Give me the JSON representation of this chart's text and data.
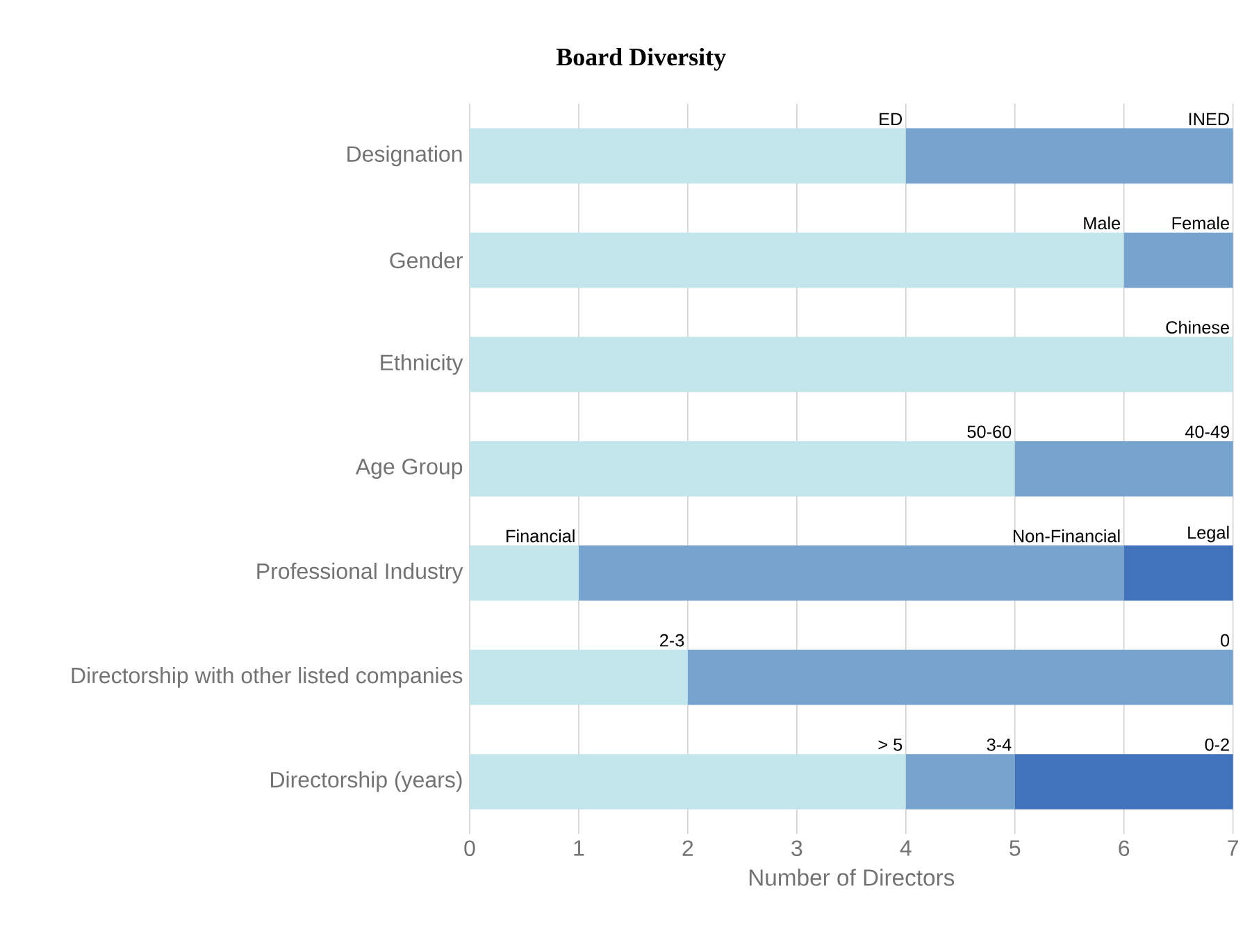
{
  "chart_data": {
    "type": "bar",
    "orientation": "horizontal",
    "stacked": true,
    "title": "Board Diversity",
    "xlabel": "Number of Directors",
    "categories": [
      "Designation",
      "Gender",
      "Ethnicity",
      "Age Group",
      "Professional Industry",
      "Directorship with other listed companies",
      "Directorship (years)"
    ],
    "series": [
      {
        "color": "#c2e6ec",
        "values": [
          4,
          6,
          7,
          5,
          1,
          2,
          4
        ]
      },
      {
        "color": "#77a4cf",
        "values": [
          3,
          1,
          null,
          2,
          5,
          5,
          1
        ]
      },
      {
        "color": "#4173bd",
        "values": [
          null,
          null,
          null,
          null,
          1,
          null,
          2
        ]
      }
    ],
    "xlim": [
      0,
      7
    ],
    "xticks": [
      0,
      1,
      2,
      3,
      4,
      5,
      6,
      7
    ],
    "grid": "x",
    "annotations": [
      {
        "text": "ED",
        "x": 4,
        "y": "Designation"
      },
      {
        "text": "INED",
        "x": 7,
        "y": "Designation"
      },
      {
        "text": "Male",
        "x": 6,
        "y": "Gender"
      },
      {
        "text": "Female",
        "x": 7,
        "y": "Gender"
      },
      {
        "text": "Chinese",
        "x": 7,
        "y": "Ethnicity"
      },
      {
        "text": "50-60",
        "x": 5,
        "y": "Age Group"
      },
      {
        "text": "40-49",
        "x": 7,
        "y": "Age Group"
      },
      {
        "text": "Financial",
        "x": 1,
        "y": "Professional Industry"
      },
      {
        "text": "Non-Financial",
        "x": 6,
        "y": "Professional Industry"
      },
      {
        "text": "Legal",
        "x": 7,
        "y": "Professional Industry"
      },
      {
        "text": "2-3",
        "x": 2,
        "y": "Directorship with other listed companies"
      },
      {
        "text": "0",
        "x": 7,
        "y": "Directorship with other listed companies"
      },
      {
        "text": "> 5",
        "x": 4,
        "y": "Directorship (years)"
      },
      {
        "text": "3-4",
        "x": 5,
        "y": "Directorship (years)"
      },
      {
        "text": "0-2",
        "x": 7,
        "y": "Directorship (years)"
      }
    ]
  }
}
